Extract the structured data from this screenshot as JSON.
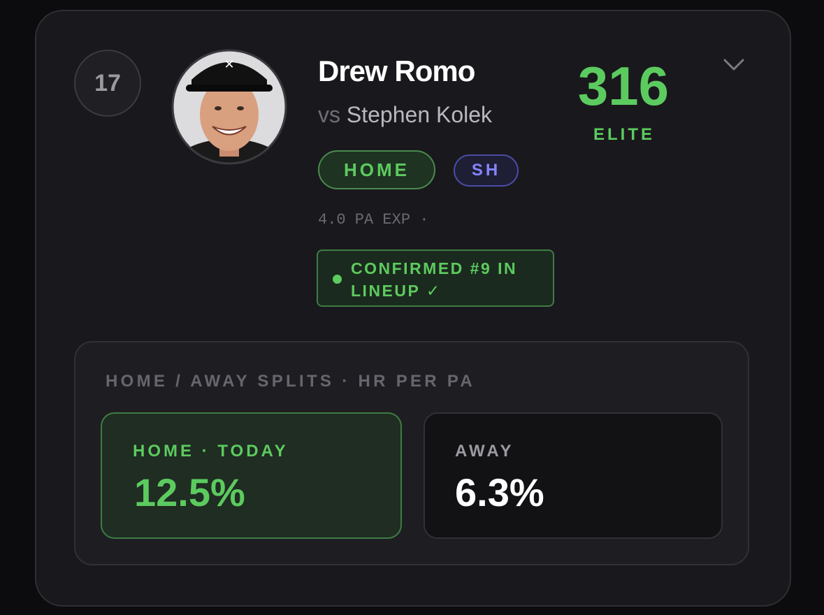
{
  "rank": "17",
  "player": {
    "name": "Drew Romo",
    "vs_prefix": "vs",
    "opponent": "Stephen Kolek"
  },
  "score": {
    "value": "316",
    "tier": "ELITE"
  },
  "badges": [
    "HOME",
    "SH"
  ],
  "pa_expected": {
    "text": "4.0 PA EXP",
    "separator": "·"
  },
  "lineup": {
    "line1": "CONFIRMED #9 IN",
    "line2": "LINEUP ✓"
  },
  "splits": {
    "title": "HOME / AWAY SPLITS · HR PER PA",
    "home": {
      "label": "HOME · TODAY",
      "value": "12.5%"
    },
    "away": {
      "label": "AWAY",
      "value": "6.3%"
    }
  }
}
